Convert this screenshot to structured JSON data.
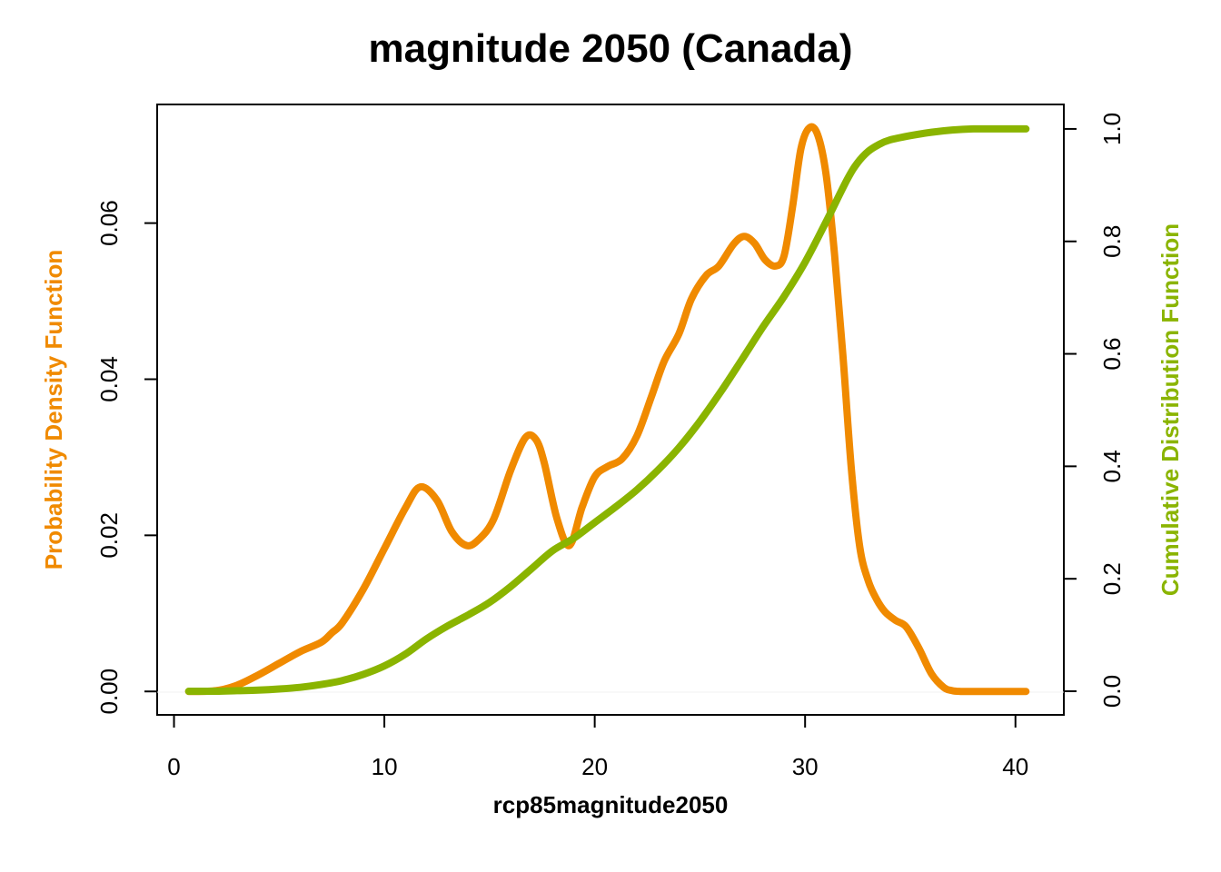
{
  "chart_data": {
    "type": "line",
    "title": "magnitude 2050 (Canada)",
    "xlabel": "rcp85magnitude2050",
    "ylabel_left": "Probability Density Function",
    "ylabel_right": "Cumulative Distribution Function",
    "xlim": [
      -0.8,
      42.3
    ],
    "ylim_left": [
      -0.003,
      0.0752
    ],
    "ylim_right": [
      -0.042,
      1.0435
    ],
    "x_ticks": [
      0,
      10,
      20,
      30,
      40
    ],
    "x_tick_labels": [
      "0",
      "10",
      "20",
      "30",
      "40"
    ],
    "y_left_ticks": [
      0.0,
      0.02,
      0.04,
      0.06
    ],
    "y_left_tick_labels": [
      "0.00",
      "0.02",
      "0.04",
      "0.06"
    ],
    "y_right_ticks": [
      0.0,
      0.2,
      0.4,
      0.6,
      0.8,
      1.0
    ],
    "y_right_tick_labels": [
      "0.0",
      "0.2",
      "0.4",
      "0.6",
      "0.8",
      "1.0"
    ],
    "grid": false,
    "colors": {
      "pdf": "#f08a00",
      "cdf": "#8ab400",
      "axes": "#000000"
    },
    "series": [
      {
        "name": "Probability Density Function",
        "axis": "left",
        "x": [
          0.7,
          2.0,
          3.0,
          4.0,
          5.0,
          6.0,
          7.0,
          7.5,
          8.0,
          9.0,
          10.0,
          11.0,
          11.7,
          12.5,
          13.2,
          13.9,
          14.5,
          15.2,
          16.0,
          16.7,
          17.2,
          17.6,
          18.2,
          18.8,
          19.4,
          20.0,
          20.6,
          21.3,
          22.0,
          22.7,
          23.3,
          24.0,
          24.6,
          25.3,
          25.9,
          26.6,
          27.1,
          27.6,
          28.1,
          28.6,
          29.0,
          29.4,
          29.8,
          30.2,
          30.6,
          31.0,
          31.4,
          31.8,
          32.2,
          32.6,
          33.0,
          33.4,
          33.8,
          34.3,
          34.8,
          35.4,
          36.0,
          36.6,
          37.0,
          37.4,
          37.8,
          38.2,
          38.6,
          39.0,
          40.5
        ],
        "y": [
          0.0,
          0.0001,
          0.0008,
          0.0021,
          0.0036,
          0.0051,
          0.0063,
          0.0075,
          0.0088,
          0.0131,
          0.0183,
          0.0235,
          0.0262,
          0.0245,
          0.0205,
          0.0187,
          0.0195,
          0.0221,
          0.0283,
          0.0325,
          0.0323,
          0.0293,
          0.0222,
          0.0187,
          0.0236,
          0.0275,
          0.0288,
          0.0298,
          0.0327,
          0.0378,
          0.0423,
          0.0458,
          0.0503,
          0.0533,
          0.0545,
          0.0573,
          0.0583,
          0.0574,
          0.0553,
          0.0545,
          0.0558,
          0.062,
          0.0695,
          0.0722,
          0.0713,
          0.0662,
          0.056,
          0.043,
          0.0285,
          0.0185,
          0.0142,
          0.0118,
          0.0102,
          0.0091,
          0.0083,
          0.0056,
          0.0023,
          0.0005,
          0.0001,
          0.0,
          0.0,
          0.0,
          0.0,
          0.0,
          0.0
        ]
      },
      {
        "name": "Cumulative Distribution Function",
        "axis": "right",
        "x": [
          0.7,
          2.0,
          3.0,
          4.0,
          5.0,
          6.0,
          7.0,
          8.0,
          9.0,
          10.0,
          11.0,
          12.0,
          13.0,
          14.0,
          15.0,
          16.0,
          17.0,
          18.0,
          19.0,
          20.0,
          21.0,
          22.0,
          23.0,
          24.0,
          25.0,
          26.0,
          27.0,
          28.0,
          29.0,
          30.0,
          31.0,
          32.0,
          32.5,
          33.0,
          33.5,
          34.0,
          35.0,
          36.0,
          37.0,
          38.0,
          39.0,
          40.5
        ],
        "y": [
          0.0,
          0.0,
          0.001,
          0.002,
          0.004,
          0.007,
          0.012,
          0.019,
          0.03,
          0.045,
          0.066,
          0.093,
          0.116,
          0.136,
          0.158,
          0.186,
          0.218,
          0.25,
          0.272,
          0.3,
          0.328,
          0.358,
          0.393,
          0.433,
          0.48,
          0.533,
          0.59,
          0.648,
          0.702,
          0.763,
          0.835,
          0.91,
          0.94,
          0.96,
          0.972,
          0.98,
          0.988,
          0.994,
          0.998,
          1.0,
          1.0,
          1.0
        ]
      }
    ]
  }
}
